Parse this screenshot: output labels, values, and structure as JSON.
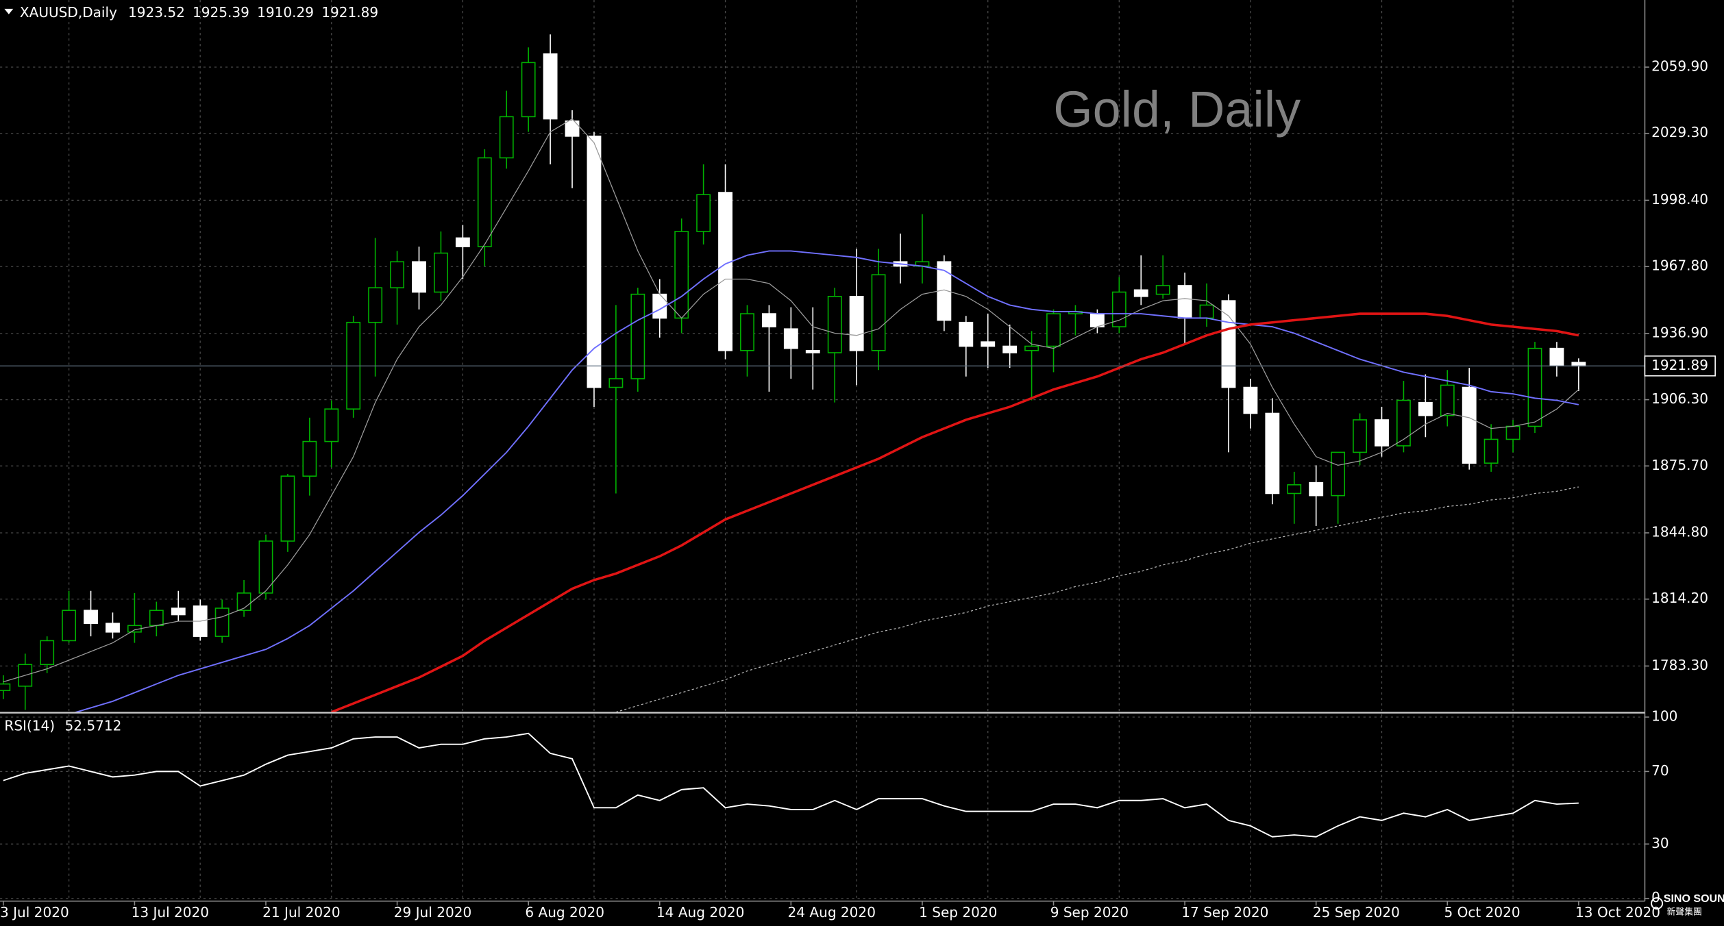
{
  "header": {
    "symbol": "XAUUSD,Daily"
  },
  "watermark": "Gold, Daily",
  "logo": {
    "name": "SINO SOUND",
    "sub": "新聲集團"
  },
  "chart_data": [
    {
      "type": "candlestick",
      "categories": [
        "3 Jul 2020",
        null,
        null,
        null,
        null,
        null,
        "13 Jul 2020",
        null,
        null,
        null,
        null,
        null,
        "21 Jul 2020",
        null,
        null,
        null,
        null,
        null,
        "29 Jul 2020",
        null,
        null,
        null,
        null,
        null,
        "6 Aug 2020",
        null,
        null,
        null,
        null,
        null,
        "14 Aug 2020",
        null,
        null,
        null,
        null,
        null,
        "24 Aug 2020",
        null,
        null,
        null,
        null,
        null,
        "1 Sep 2020",
        null,
        null,
        null,
        null,
        null,
        "9 Sep 2020",
        null,
        null,
        null,
        null,
        null,
        "17 Sep 2020",
        null,
        null,
        null,
        null,
        null,
        "25 Sep 2020",
        null,
        null,
        null,
        null,
        null,
        "5 Oct 2020",
        null,
        null,
        null,
        null,
        null,
        "13 Oct 2020"
      ],
      "open": [
        1772,
        1774,
        1784,
        1795,
        1809,
        1803,
        1799,
        1802,
        1810,
        1811,
        1797,
        1809,
        1817,
        1841,
        1871,
        1887,
        1902,
        1942,
        1958,
        1970,
        1956,
        1981,
        1977,
        2018,
        2037,
        2066,
        2035,
        2028,
        1912,
        1916,
        1955,
        1944,
        1984,
        2002,
        1929,
        1946,
        1939,
        1929,
        1928,
        1954,
        1929,
        1970,
        1968,
        1970,
        1942,
        1933,
        1931,
        1929,
        1931,
        1946,
        1946,
        1940,
        1957,
        1955,
        1959,
        1944,
        1952,
        1912,
        1900,
        1863,
        1868,
        1862,
        1882,
        1897,
        1885,
        1905,
        1899,
        1912,
        1877,
        1888,
        1894,
        1930,
        1923.52
      ],
      "high": [
        1779,
        1789,
        1797,
        1818,
        1818,
        1808,
        1817,
        1813,
        1818,
        1814,
        1814,
        1823,
        1844,
        1872,
        1898,
        1906,
        1945,
        1981,
        1975,
        1977,
        1984,
        1987,
        2022,
        2049,
        2069,
        2075,
        2040,
        2030,
        1950,
        1958,
        1962,
        1990,
        2015,
        2015,
        1950,
        1950,
        1949,
        1949,
        1958,
        1976,
        1976,
        1983,
        1992,
        1973,
        1945,
        1946,
        1941,
        1938,
        1948,
        1950,
        1948,
        1963,
        1973,
        1973,
        1965,
        1960,
        1955,
        1916,
        1907,
        1873,
        1876,
        1882,
        1900,
        1903,
        1915,
        1918,
        1920,
        1921,
        1895,
        1897,
        1933,
        1933,
        1925.39
      ],
      "low": [
        1768,
        1763,
        1780,
        1794,
        1797,
        1796,
        1794,
        1797,
        1804,
        1795,
        1794,
        1806,
        1814,
        1836,
        1862,
        1875,
        1898,
        1917,
        1941,
        1948,
        1952,
        1962,
        1968,
        2013,
        2030,
        2015,
        2004,
        1903,
        1863,
        1910,
        1935,
        1937,
        1978,
        1925,
        1917,
        1910,
        1916,
        1911,
        1905,
        1913,
        1920,
        1960,
        1960,
        1938,
        1917,
        1921,
        1921,
        1906,
        1919,
        1936,
        1937,
        1937,
        1950,
        1953,
        1932,
        1940,
        1882,
        1893,
        1858,
        1849,
        1848,
        1849,
        1876,
        1880,
        1882,
        1889,
        1894,
        1874,
        1873,
        1882,
        1891,
        1917,
        1910.29
      ],
      "close": [
        1775,
        1784,
        1795,
        1809,
        1803,
        1799,
        1802,
        1809,
        1807,
        1797,
        1810,
        1817,
        1841,
        1871,
        1887,
        1902,
        1942,
        1958,
        1970,
        1956,
        1974,
        1977,
        2018,
        2037,
        2062,
        2036,
        2028,
        1912,
        1916,
        1955,
        1944,
        1984,
        2001,
        1929,
        1946,
        1940,
        1930,
        1928,
        1954,
        1929,
        1964,
        1968,
        1970,
        1943,
        1931,
        1931,
        1928,
        1931,
        1946,
        1947,
        1940,
        1956,
        1954,
        1959,
        1944,
        1950,
        1912,
        1900,
        1863,
        1867,
        1862,
        1882,
        1897,
        1885,
        1906,
        1899,
        1913,
        1877,
        1888,
        1894,
        1930,
        1922,
        1921.89
      ],
      "up_color": "#00b000",
      "down_color": "#ffffff",
      "ylim": [
        1762.0,
        2090.9
      ],
      "yticks": [
        {
          "value": 2059.9,
          "label": "2059.90"
        },
        {
          "value": 2029.3,
          "label": "2029.30"
        },
        {
          "value": 1998.4,
          "label": "1998.40"
        },
        {
          "value": 1967.8,
          "label": "1967.80"
        },
        {
          "value": 1936.9,
          "label": "1936.90"
        },
        {
          "value": 1906.3,
          "label": "1906.30"
        },
        {
          "value": 1875.7,
          "label": "1875.70"
        },
        {
          "value": 1844.8,
          "label": "1844.80"
        },
        {
          "value": 1814.2,
          "label": "1814.20"
        },
        {
          "value": 1783.3,
          "label": "1783.30"
        }
      ],
      "grid": true,
      "lines": [
        {
          "color": "#9a9a9a",
          "style": "thin",
          "values": [
            1776,
            1779,
            1782,
            1786,
            1790,
            1794,
            1800,
            1802,
            1804,
            1804,
            1806,
            1810,
            1818,
            1830,
            1844,
            1862,
            1880,
            1905,
            1925,
            1940,
            1950,
            1963,
            1978,
            1995,
            2012,
            2030,
            2036,
            2025,
            2000,
            1975,
            1955,
            1944,
            1955,
            1962,
            1962,
            1960,
            1952,
            1940,
            1937,
            1936,
            1939,
            1948,
            1955,
            1957,
            1954,
            1948,
            1940,
            1932,
            1930,
            1935,
            1940,
            1943,
            1948,
            1952,
            1953,
            1952,
            1945,
            1932,
            1912,
            1895,
            1880,
            1876,
            1878,
            1882,
            1888,
            1895,
            1900,
            1898,
            1893,
            1894,
            1896,
            1902,
            1911
          ]
        },
        {
          "color": "#7070ff",
          "style": "solid",
          "values": [
            1752,
            1755,
            1758,
            1761,
            1764,
            1767,
            1771,
            1775,
            1779,
            1782,
            1785,
            1788,
            1791,
            1796,
            1802,
            1810,
            1818,
            1827,
            1836,
            1845,
            1853,
            1862,
            1872,
            1882,
            1894,
            1907,
            1920,
            1930,
            1937,
            1943,
            1948,
            1954,
            1962,
            1969,
            1973,
            1975,
            1975,
            1974,
            1973,
            1972,
            1970,
            1969,
            1968,
            1966,
            1960,
            1954,
            1950,
            1948,
            1947,
            1947,
            1946,
            1946,
            1946,
            1945,
            1944,
            1944,
            1942,
            1941,
            1940,
            1937,
            1933,
            1929,
            1925,
            1922,
            1919,
            1917,
            1915,
            1913,
            1910,
            1909,
            1907,
            1906,
            1904
          ]
        },
        {
          "color": "#e01414",
          "style": "bold",
          "values": [
            null,
            null,
            null,
            null,
            null,
            null,
            null,
            null,
            null,
            null,
            null,
            null,
            null,
            null,
            null,
            1762,
            1766,
            1770,
            1774,
            1778,
            1783,
            1788,
            1795,
            1801,
            1807,
            1813,
            1819,
            1823,
            1826,
            1830,
            1834,
            1839,
            1845,
            1851,
            1855,
            1859,
            1863,
            1867,
            1871,
            1875,
            1879,
            1884,
            1889,
            1893,
            1897,
            1900,
            1903,
            1907,
            1911,
            1914,
            1917,
            1921,
            1925,
            1928,
            1932,
            1936,
            1939,
            1941,
            1942,
            1943,
            1944,
            1945,
            1946,
            1946,
            1946,
            1946,
            1945,
            1943,
            1941,
            1940,
            1939,
            1938,
            1936
          ]
        },
        {
          "color": "#b4b4b4",
          "style": "dotted",
          "values": [
            null,
            null,
            null,
            null,
            null,
            null,
            null,
            null,
            null,
            null,
            null,
            null,
            null,
            null,
            null,
            null,
            null,
            null,
            null,
            null,
            null,
            null,
            null,
            null,
            null,
            null,
            null,
            null,
            1762,
            1765,
            1768,
            1771,
            1774,
            1777,
            1781,
            1784,
            1787,
            1790,
            1793,
            1796,
            1799,
            1801,
            1804,
            1806,
            1808,
            1811,
            1813,
            1815,
            1817,
            1820,
            1822,
            1825,
            1827,
            1830,
            1832,
            1835,
            1837,
            1840,
            1842,
            1844,
            1846,
            1848,
            1850,
            1852,
            1854,
            1855,
            1857,
            1858,
            1860,
            1861,
            1863,
            1864,
            1866
          ]
        }
      ]
    },
    {
      "type": "line",
      "title": "RSI(14)",
      "series": [
        {
          "color": "#ffffff",
          "values": [
            65,
            69,
            71,
            73,
            70,
            67,
            68,
            70,
            70,
            62,
            65,
            68,
            74,
            79,
            81,
            83,
            88,
            89,
            89,
            83,
            85,
            85,
            88,
            89,
            91,
            80,
            77,
            50,
            50,
            57,
            54,
            60,
            61,
            50,
            52,
            51,
            49,
            49,
            54,
            49,
            55,
            55,
            55,
            51,
            48,
            48,
            48,
            48,
            52,
            52,
            50,
            54,
            54,
            55,
            50,
            52,
            43,
            40,
            34,
            35,
            34,
            40,
            45,
            43,
            47,
            45,
            49,
            43,
            45,
            47,
            54,
            52,
            52.5712
          ]
        }
      ],
      "ylim": [
        0,
        100
      ],
      "yticks": [
        100,
        70,
        30,
        0
      ],
      "grid": true
    }
  ]
}
